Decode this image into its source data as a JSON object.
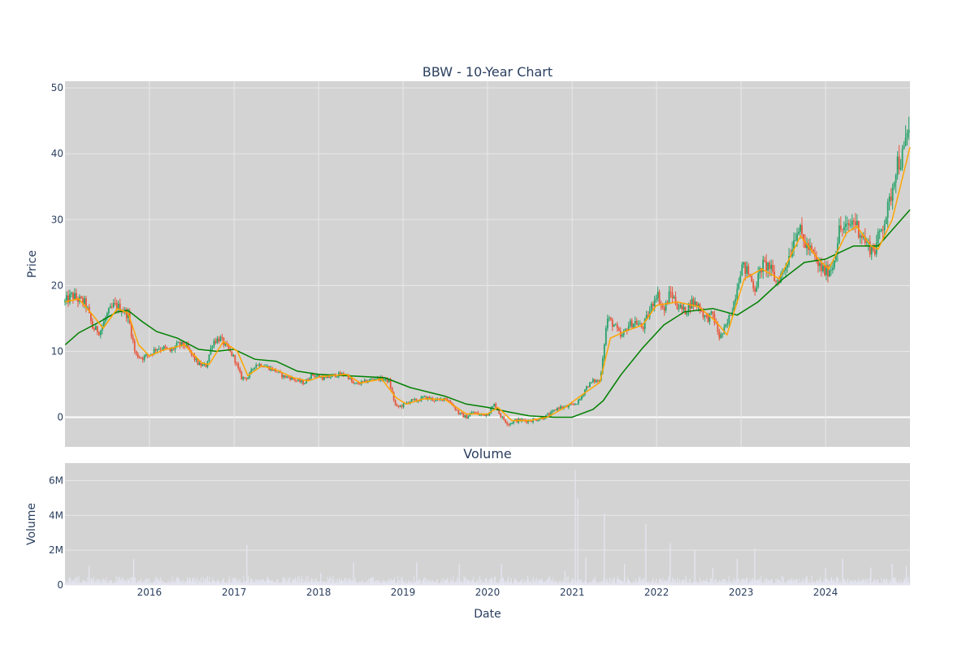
{
  "chart_data": [
    {
      "type": "candlestick",
      "title": "BBW - 10-Year Chart",
      "ylabel": "Price",
      "xlim": [
        "2015-01-01",
        "2024-12-31"
      ],
      "ylim": [
        -4.5,
        51
      ],
      "ytick_labels": [
        "0",
        "10",
        "20",
        "30",
        "40",
        "50"
      ],
      "ytick_values": [
        0,
        10,
        20,
        30,
        40,
        50
      ],
      "xtick_labels": [
        "2016",
        "2017",
        "2018",
        "2019",
        "2020",
        "2021",
        "2022",
        "2023",
        "2024"
      ],
      "grid": true,
      "colors": {
        "up": "#26a269",
        "down": "#e8553b",
        "short_ma": "#ffa500",
        "long_ma": "#008000",
        "plot_bg": "#d3d3d3",
        "grid": "#e8e8e8"
      },
      "close_series": [
        [
          "2015-01-02",
          17.5
        ],
        [
          "2015-02-01",
          18.5
        ],
        [
          "2015-03-01",
          17.8
        ],
        [
          "2015-04-01",
          17.2
        ],
        [
          "2015-05-01",
          13.5
        ],
        [
          "2015-06-01",
          13.0
        ],
        [
          "2015-07-01",
          15.5
        ],
        [
          "2015-08-01",
          17.0
        ],
        [
          "2015-09-01",
          16.5
        ],
        [
          "2015-10-01",
          15.5
        ],
        [
          "2015-11-01",
          9.5
        ],
        [
          "2015-12-01",
          9.0
        ],
        [
          "2016-01-01",
          9.5
        ],
        [
          "2016-02-01",
          10.5
        ],
        [
          "2016-03-01",
          10.5
        ],
        [
          "2016-04-01",
          10.0
        ],
        [
          "2016-05-01",
          11.0
        ],
        [
          "2016-06-01",
          11.0
        ],
        [
          "2016-07-01",
          9.5
        ],
        [
          "2016-08-01",
          8.0
        ],
        [
          "2016-09-01",
          7.8
        ],
        [
          "2016-10-01",
          11.5
        ],
        [
          "2016-11-01",
          12.0
        ],
        [
          "2016-12-01",
          10.5
        ],
        [
          "2017-01-01",
          9.0
        ],
        [
          "2017-02-01",
          6.0
        ],
        [
          "2017-03-01",
          6.0
        ],
        [
          "2017-04-01",
          8.0
        ],
        [
          "2017-05-01",
          8.0
        ],
        [
          "2017-06-01",
          7.5
        ],
        [
          "2017-07-01",
          7.0
        ],
        [
          "2017-08-01",
          6.2
        ],
        [
          "2017-09-01",
          6.0
        ],
        [
          "2017-10-01",
          5.5
        ],
        [
          "2017-11-01",
          5.2
        ],
        [
          "2017-12-01",
          6.5
        ],
        [
          "2018-01-01",
          6.2
        ],
        [
          "2018-02-01",
          5.8
        ],
        [
          "2018-03-01",
          6.3
        ],
        [
          "2018-04-01",
          6.5
        ],
        [
          "2018-05-01",
          6.5
        ],
        [
          "2018-06-01",
          5.0
        ],
        [
          "2018-07-01",
          5.2
        ],
        [
          "2018-08-01",
          5.5
        ],
        [
          "2018-09-01",
          6.0
        ],
        [
          "2018-10-01",
          5.8
        ],
        [
          "2018-11-01",
          5.5
        ],
        [
          "2018-12-01",
          1.5
        ],
        [
          "2019-01-01",
          1.8
        ],
        [
          "2019-02-01",
          2.5
        ],
        [
          "2019-03-01",
          2.5
        ],
        [
          "2019-04-01",
          3.0
        ],
        [
          "2019-05-01",
          2.8
        ],
        [
          "2019-06-01",
          2.5
        ],
        [
          "2019-07-01",
          3.0
        ],
        [
          "2019-08-01",
          2.0
        ],
        [
          "2019-09-01",
          0.5
        ],
        [
          "2019-10-01",
          0.0
        ],
        [
          "2019-11-01",
          0.8
        ],
        [
          "2019-12-01",
          0.3
        ],
        [
          "2020-01-01",
          0.5
        ],
        [
          "2020-02-01",
          2.0
        ],
        [
          "2020-03-01",
          0.0
        ],
        [
          "2020-04-01",
          -1.0
        ],
        [
          "2020-05-01",
          -0.5
        ],
        [
          "2020-06-01",
          -0.5
        ],
        [
          "2020-07-01",
          -0.5
        ],
        [
          "2020-08-01",
          -0.3
        ],
        [
          "2020-09-01",
          0.0
        ],
        [
          "2020-10-01",
          0.5
        ],
        [
          "2020-11-01",
          1.5
        ],
        [
          "2020-12-01",
          1.5
        ],
        [
          "2021-01-01",
          1.8
        ],
        [
          "2021-02-01",
          2.5
        ],
        [
          "2021-03-01",
          4.5
        ],
        [
          "2021-04-01",
          5.5
        ],
        [
          "2021-05-01",
          5.5
        ],
        [
          "2021-06-01",
          15.0
        ],
        [
          "2021-07-01",
          14.0
        ],
        [
          "2021-08-01",
          12.0
        ],
        [
          "2021-09-01",
          14.0
        ],
        [
          "2021-10-01",
          14.5
        ],
        [
          "2021-11-01",
          13.5
        ],
        [
          "2021-12-01",
          16.0
        ],
        [
          "2022-01-01",
          19.0
        ],
        [
          "2022-02-01",
          16.0
        ],
        [
          "2022-03-01",
          19.0
        ],
        [
          "2022-04-01",
          17.0
        ],
        [
          "2022-05-01",
          16.0
        ],
        [
          "2022-06-01",
          17.5
        ],
        [
          "2022-07-01",
          17.0
        ],
        [
          "2022-08-01",
          15.0
        ],
        [
          "2022-09-01",
          15.5
        ],
        [
          "2022-10-01",
          12.0
        ],
        [
          "2022-11-01",
          14.0
        ],
        [
          "2022-12-01",
          17.5
        ],
        [
          "2023-01-01",
          23.0
        ],
        [
          "2023-02-01",
          22.0
        ],
        [
          "2023-03-01",
          19.5
        ],
        [
          "2023-04-01",
          23.0
        ],
        [
          "2023-05-01",
          23.0
        ],
        [
          "2023-06-01",
          20.5
        ],
        [
          "2023-07-01",
          22.0
        ],
        [
          "2023-08-01",
          25.0
        ],
        [
          "2023-09-01",
          29.0
        ],
        [
          "2023-10-01",
          26.5
        ],
        [
          "2023-11-01",
          25.0
        ],
        [
          "2023-12-01",
          23.0
        ],
        [
          "2024-01-01",
          22.0
        ],
        [
          "2024-02-01",
          23.0
        ],
        [
          "2024-03-01",
          28.5
        ],
        [
          "2024-04-01",
          28.5
        ],
        [
          "2024-05-01",
          30.0
        ],
        [
          "2024-06-01",
          28.0
        ],
        [
          "2024-07-01",
          26.0
        ],
        [
          "2024-08-01",
          25.5
        ],
        [
          "2024-09-01",
          29.0
        ],
        [
          "2024-10-01",
          32.0
        ],
        [
          "2024-11-01",
          38.5
        ],
        [
          "2024-12-01",
          39.5
        ],
        [
          "2024-12-31",
          45.0
        ]
      ],
      "short_ma": [
        [
          "2015-01-02",
          17.5
        ],
        [
          "2015-03-01",
          18.0
        ],
        [
          "2015-05-01",
          15.5
        ],
        [
          "2015-06-15",
          13.5
        ],
        [
          "2015-08-15",
          16.5
        ],
        [
          "2015-10-01",
          15.8
        ],
        [
          "2015-11-15",
          11.0
        ],
        [
          "2016-01-01",
          9.3
        ],
        [
          "2016-03-01",
          10.2
        ],
        [
          "2016-06-01",
          11.0
        ],
        [
          "2016-08-15",
          8.2
        ],
        [
          "2016-09-15",
          8.0
        ],
        [
          "2016-11-15",
          11.5
        ],
        [
          "2017-01-15",
          10.0
        ],
        [
          "2017-03-01",
          6.3
        ],
        [
          "2017-05-01",
          7.8
        ],
        [
          "2017-07-01",
          7.2
        ],
        [
          "2017-09-15",
          6.0
        ],
        [
          "2017-11-15",
          5.5
        ],
        [
          "2018-01-15",
          6.2
        ],
        [
          "2018-05-01",
          6.5
        ],
        [
          "2018-07-01",
          5.2
        ],
        [
          "2018-10-01",
          5.8
        ],
        [
          "2018-12-01",
          3.0
        ],
        [
          "2019-01-15",
          2.0
        ],
        [
          "2019-04-01",
          2.8
        ],
        [
          "2019-07-01",
          2.7
        ],
        [
          "2019-10-01",
          0.5
        ],
        [
          "2020-01-01",
          0.5
        ],
        [
          "2020-02-15",
          1.5
        ],
        [
          "2020-04-15",
          -0.5
        ],
        [
          "2020-07-01",
          -0.5
        ],
        [
          "2020-09-15",
          0.0
        ],
        [
          "2020-12-01",
          1.5
        ],
        [
          "2021-03-01",
          3.8
        ],
        [
          "2021-05-01",
          5.3
        ],
        [
          "2021-06-15",
          12.0
        ],
        [
          "2021-08-15",
          13.0
        ],
        [
          "2021-11-01",
          14.0
        ],
        [
          "2022-01-01",
          17.0
        ],
        [
          "2022-04-01",
          17.5
        ],
        [
          "2022-07-01",
          16.8
        ],
        [
          "2022-09-15",
          14.5
        ],
        [
          "2022-11-01",
          12.5
        ],
        [
          "2023-01-15",
          21.0
        ],
        [
          "2023-04-01",
          22.5
        ],
        [
          "2023-06-15",
          21.0
        ],
        [
          "2023-09-15",
          27.5
        ],
        [
          "2023-12-01",
          24.0
        ],
        [
          "2024-01-15",
          22.5
        ],
        [
          "2024-04-01",
          28.0
        ],
        [
          "2024-05-15",
          29.0
        ],
        [
          "2024-07-15",
          26.0
        ],
        [
          "2024-08-15",
          25.5
        ],
        [
          "2024-10-15",
          30.0
        ],
        [
          "2024-12-31",
          41.0
        ]
      ],
      "long_ma": [
        [
          "2015-01-02",
          11.0
        ],
        [
          "2015-03-01",
          12.8
        ],
        [
          "2015-06-01",
          14.5
        ],
        [
          "2015-08-15",
          16.0
        ],
        [
          "2015-10-01",
          16.2
        ],
        [
          "2015-12-01",
          14.5
        ],
        [
          "2016-02-01",
          13.0
        ],
        [
          "2016-05-01",
          12.0
        ],
        [
          "2016-08-01",
          10.3
        ],
        [
          "2016-10-15",
          10.0
        ],
        [
          "2017-01-01",
          10.3
        ],
        [
          "2017-04-01",
          8.8
        ],
        [
          "2017-07-01",
          8.5
        ],
        [
          "2017-10-01",
          7.0
        ],
        [
          "2018-01-01",
          6.5
        ],
        [
          "2018-07-01",
          6.2
        ],
        [
          "2018-10-15",
          6.0
        ],
        [
          "2019-02-01",
          4.5
        ],
        [
          "2019-07-01",
          3.2
        ],
        [
          "2019-10-01",
          2.0
        ],
        [
          "2020-01-01",
          1.5
        ],
        [
          "2020-04-01",
          0.8
        ],
        [
          "2020-07-01",
          0.2
        ],
        [
          "2020-10-15",
          0.0
        ],
        [
          "2021-01-01",
          0.0
        ],
        [
          "2021-04-01",
          1.2
        ],
        [
          "2021-05-15",
          2.5
        ],
        [
          "2021-08-01",
          6.5
        ],
        [
          "2021-11-01",
          10.5
        ],
        [
          "2022-02-01",
          14.0
        ],
        [
          "2022-05-01",
          16.0
        ],
        [
          "2022-09-01",
          16.5
        ],
        [
          "2022-12-15",
          15.5
        ],
        [
          "2023-03-15",
          17.5
        ],
        [
          "2023-07-01",
          21.0
        ],
        [
          "2023-10-01",
          23.5
        ],
        [
          "2024-01-01",
          24.0
        ],
        [
          "2024-05-01",
          26.0
        ],
        [
          "2024-08-15",
          26.0
        ],
        [
          "2024-12-31",
          31.5
        ]
      ]
    },
    {
      "type": "bar",
      "title": "Volume",
      "xlabel": "Date",
      "ylabel": "Volume",
      "ylim": [
        0,
        7000000
      ],
      "ytick_labels": [
        "0",
        "2M",
        "4M",
        "6M"
      ],
      "ytick_values": [
        0,
        2000000,
        4000000,
        6000000
      ],
      "xtick_labels": [
        "2016",
        "2017",
        "2018",
        "2019",
        "2020",
        "2021",
        "2022",
        "2023",
        "2024"
      ],
      "colors": {
        "bar": "#e4e4f0",
        "plot_bg": "#d3d3d3",
        "grid": "#e8e8e8"
      },
      "spikes": [
        [
          "2015-04-15",
          1100000
        ],
        [
          "2015-10-25",
          1500000
        ],
        [
          "2017-02-25",
          2300000
        ],
        [
          "2018-01-10",
          700000
        ],
        [
          "2018-06-01",
          1300000
        ],
        [
          "2019-03-01",
          1300000
        ],
        [
          "2019-09-01",
          1200000
        ],
        [
          "2020-03-01",
          1200000
        ],
        [
          "2020-12-01",
          800000
        ],
        [
          "2021-01-15",
          6600000
        ],
        [
          "2021-01-25",
          5000000
        ],
        [
          "2021-03-01",
          1600000
        ],
        [
          "2021-05-20",
          4100000
        ],
        [
          "2021-08-15",
          1200000
        ],
        [
          "2021-11-15",
          3500000
        ],
        [
          "2022-03-01",
          2400000
        ],
        [
          "2022-06-15",
          2000000
        ],
        [
          "2022-09-01",
          1000000
        ],
        [
          "2022-12-15",
          1500000
        ],
        [
          "2023-03-01",
          2100000
        ],
        [
          "2024-01-01",
          1000000
        ],
        [
          "2024-03-15",
          1500000
        ],
        [
          "2024-07-15",
          1000000
        ],
        [
          "2024-10-15",
          1200000
        ],
        [
          "2024-12-15",
          1100000
        ]
      ]
    }
  ]
}
